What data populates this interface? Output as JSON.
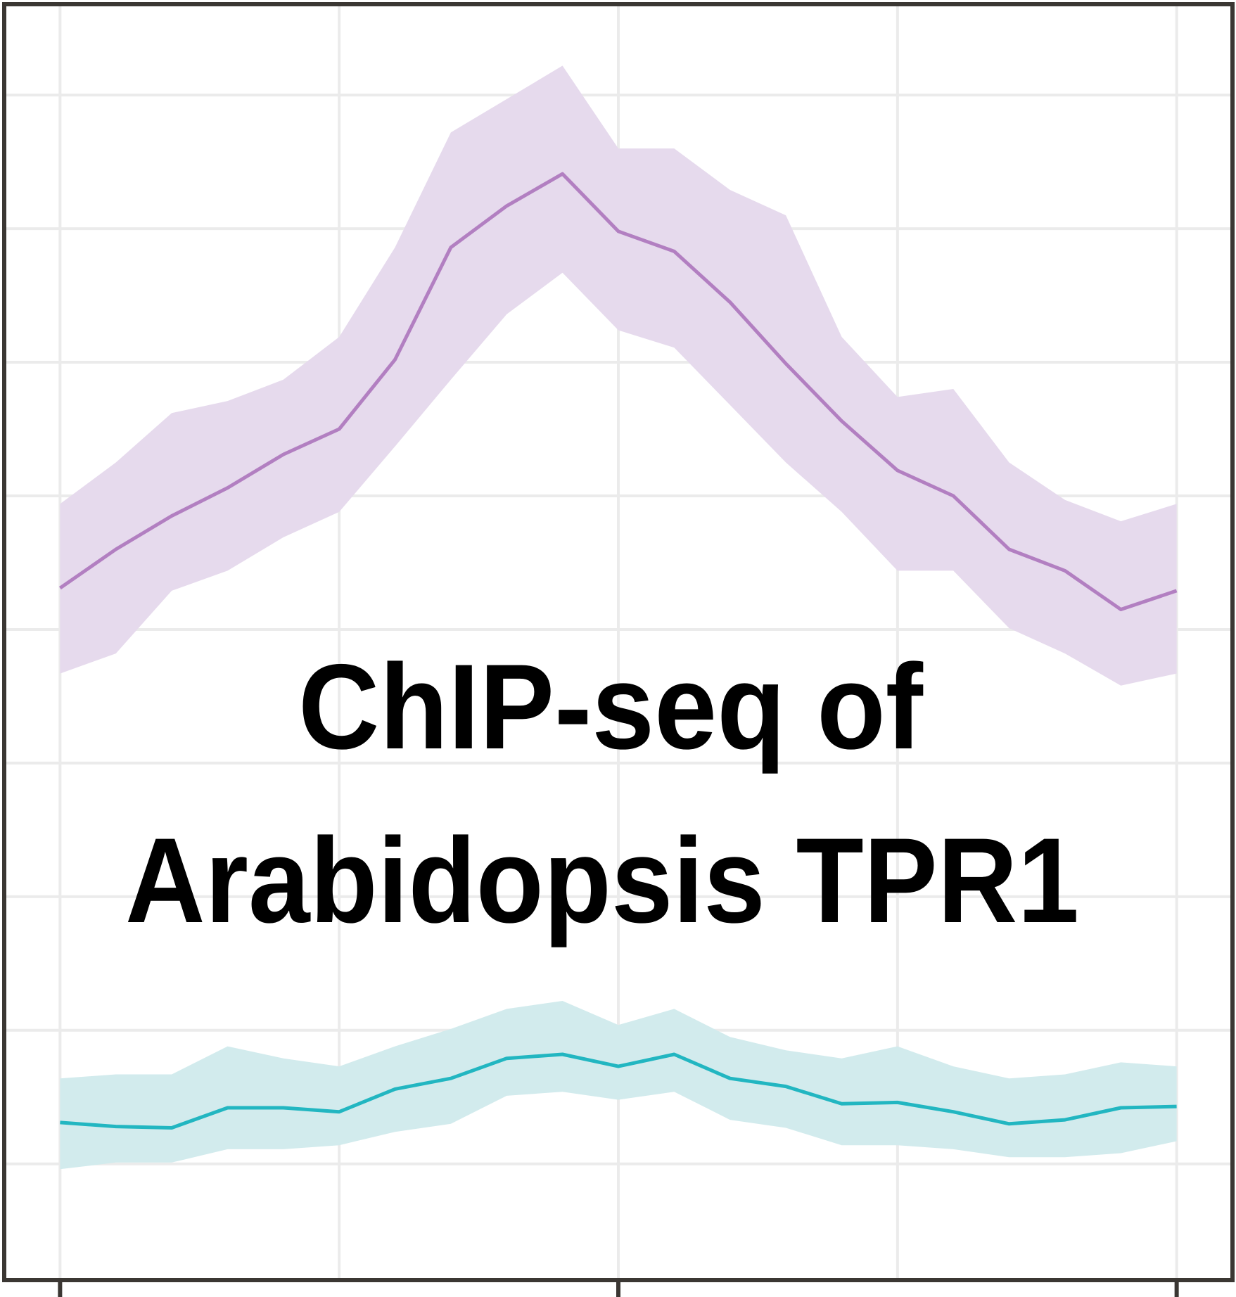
{
  "chart_data": {
    "type": "line",
    "title": [
      "ChIP-seq of",
      "Arabidopsis TPR1"
    ],
    "x": [
      0,
      0.2,
      0.4,
      0.6,
      0.8,
      1.0,
      1.2,
      1.4,
      1.6,
      1.8,
      2.0,
      2.2,
      2.4,
      2.6,
      2.8,
      3.0,
      3.2,
      3.4,
      3.6,
      3.8,
      4.0
    ],
    "series": [
      {
        "color": "#b27fc1",
        "band_color": "#e6daed",
        "values": [
          4.31,
          4.6,
          4.85,
          5.06,
          5.31,
          5.5,
          6.02,
          6.86,
          7.17,
          7.41,
          6.98,
          6.83,
          6.45,
          5.99,
          5.56,
          5.19,
          5.0,
          4.6,
          4.44,
          4.15,
          4.29
        ],
        "upper": [
          4.94,
          5.25,
          5.62,
          5.71,
          5.87,
          6.19,
          6.86,
          7.72,
          7.97,
          8.22,
          7.6,
          7.6,
          7.29,
          7.1,
          6.19,
          5.74,
          5.8,
          5.25,
          4.97,
          4.81,
          4.94
        ],
        "lower": [
          3.67,
          3.82,
          4.29,
          4.44,
          4.69,
          4.88,
          5.37,
          5.87,
          6.36,
          6.67,
          6.24,
          6.11,
          5.68,
          5.25,
          4.88,
          4.44,
          4.44,
          4.01,
          3.82,
          3.58,
          3.67
        ]
      },
      {
        "color": "#22b6c1",
        "band_color": "#d2ebed",
        "values": [
          0.31,
          0.28,
          0.27,
          0.42,
          0.42,
          0.39,
          0.56,
          0.64,
          0.79,
          0.82,
          0.73,
          0.82,
          0.64,
          0.58,
          0.45,
          0.46,
          0.39,
          0.3,
          0.33,
          0.42,
          0.43
        ],
        "upper": [
          0.64,
          0.67,
          0.67,
          0.88,
          0.79,
          0.73,
          0.88,
          1.01,
          1.16,
          1.22,
          1.04,
          1.16,
          0.95,
          0.85,
          0.79,
          0.88,
          0.73,
          0.64,
          0.67,
          0.76,
          0.73
        ],
        "lower": [
          -0.04,
          0.01,
          0.01,
          0.11,
          0.11,
          0.14,
          0.24,
          0.3,
          0.51,
          0.54,
          0.48,
          0.54,
          0.33,
          0.27,
          0.14,
          0.14,
          0.11,
          0.05,
          0.05,
          0.08,
          0.17
        ]
      }
    ],
    "xlim": [
      -0.2,
      4.2
    ],
    "xticks": [
      0,
      2,
      4
    ],
    "xgrid": [
      0,
      1,
      2,
      3,
      4
    ],
    "ylim": [
      -0.87,
      8.68
    ],
    "yticks": [
      0,
      1,
      2,
      3,
      4,
      5,
      6,
      7,
      8
    ],
    "grid": true
  }
}
